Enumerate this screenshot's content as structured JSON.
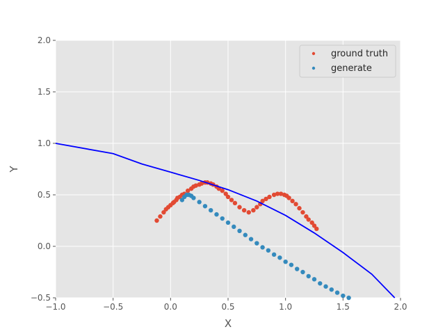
{
  "chart_data": {
    "type": "scatter",
    "title": "",
    "xlabel": "X",
    "ylabel": "Y",
    "xlim": [
      -1.0,
      2.0
    ],
    "ylim": [
      -0.5,
      2.0
    ],
    "xticks": [
      "−1.0",
      "−0.5",
      "0.0",
      "0.5",
      "1.0",
      "1.5",
      "2.0"
    ],
    "yticks": [
      "−0.5",
      "0.0",
      "0.5",
      "1.0",
      "1.5",
      "2.0"
    ],
    "xtick_values": [
      -1.0,
      -0.5,
      0.0,
      0.5,
      1.0,
      1.5,
      2.0
    ],
    "ytick_values": [
      -0.5,
      0.0,
      0.5,
      1.0,
      1.5,
      2.0
    ],
    "grid": true,
    "legend_position": "top-right",
    "style": "ggplot",
    "series": [
      {
        "name": "ground truth",
        "kind": "scatter",
        "color": "#E24A33",
        "x": [
          -0.12,
          -0.09,
          -0.06,
          -0.04,
          -0.02,
          0.0,
          0.02,
          0.03,
          0.05,
          0.06,
          0.08,
          0.1,
          0.12,
          0.15,
          0.18,
          0.2,
          0.22,
          0.25,
          0.27,
          0.3,
          0.32,
          0.35,
          0.37,
          0.4,
          0.42,
          0.45,
          0.48,
          0.5,
          0.53,
          0.56,
          0.6,
          0.64,
          0.68,
          0.72,
          0.75,
          0.78,
          0.8,
          0.83,
          0.86,
          0.9,
          0.93,
          0.96,
          0.99,
          1.01,
          1.03,
          1.06,
          1.09,
          1.12,
          1.15,
          1.18,
          1.2,
          1.23,
          1.25,
          1.27
        ],
        "y": [
          0.25,
          0.29,
          0.33,
          0.36,
          0.38,
          0.4,
          0.42,
          0.43,
          0.45,
          0.47,
          0.48,
          0.5,
          0.51,
          0.54,
          0.56,
          0.58,
          0.59,
          0.6,
          0.61,
          0.62,
          0.62,
          0.61,
          0.6,
          0.58,
          0.56,
          0.54,
          0.51,
          0.48,
          0.45,
          0.42,
          0.38,
          0.35,
          0.33,
          0.35,
          0.38,
          0.41,
          0.44,
          0.46,
          0.48,
          0.5,
          0.51,
          0.51,
          0.5,
          0.49,
          0.47,
          0.44,
          0.41,
          0.37,
          0.33,
          0.29,
          0.26,
          0.23,
          0.2,
          0.17
        ]
      },
      {
        "name": "generate",
        "kind": "scatter",
        "color": "#348ABD",
        "x": [
          0.1,
          0.12,
          0.14,
          0.16,
          0.18,
          0.2,
          0.25,
          0.3,
          0.35,
          0.4,
          0.45,
          0.5,
          0.55,
          0.6,
          0.65,
          0.7,
          0.75,
          0.8,
          0.85,
          0.9,
          0.95,
          1.0,
          1.05,
          1.1,
          1.15,
          1.2,
          1.25,
          1.3,
          1.35,
          1.4,
          1.45,
          1.5,
          1.55
        ],
        "y": [
          0.45,
          0.48,
          0.5,
          0.5,
          0.49,
          0.47,
          0.43,
          0.39,
          0.35,
          0.31,
          0.27,
          0.23,
          0.19,
          0.15,
          0.11,
          0.07,
          0.03,
          -0.01,
          -0.04,
          -0.08,
          -0.11,
          -0.15,
          -0.18,
          -0.22,
          -0.25,
          -0.29,
          -0.32,
          -0.36,
          -0.39,
          -0.42,
          -0.45,
          -0.48,
          -0.5
        ]
      },
      {
        "name": "",
        "kind": "line",
        "color": "#0000FF",
        "x": [
          -1.0,
          -0.5,
          -0.25,
          0.0,
          0.25,
          0.5,
          0.75,
          1.0,
          1.25,
          1.5,
          1.75,
          1.95
        ],
        "y": [
          1.0,
          0.9,
          0.8,
          0.72,
          0.64,
          0.55,
          0.44,
          0.3,
          0.13,
          -0.06,
          -0.27,
          -0.5
        ]
      }
    ]
  }
}
